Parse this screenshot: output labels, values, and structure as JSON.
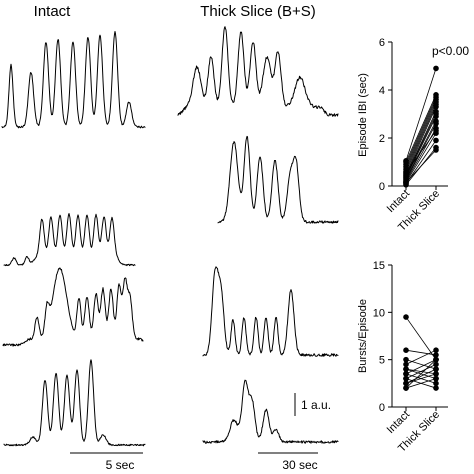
{
  "panel_titles": {
    "intact": "Intact",
    "thick_slice": "Thick Slice (B+S)"
  },
  "scale_bars": {
    "time_intact": "5 sec",
    "time_slice": "30 sec",
    "amplitude": "1 a.u."
  },
  "chart_data": [
    {
      "type": "scatter",
      "paired": true,
      "categories": [
        "Intact",
        "Thick Slice"
      ],
      "ylabel": "Episode IBI (sec)",
      "annotation": "p<0.00",
      "ylim": [
        0,
        6
      ],
      "yticks": [
        0,
        2,
        4,
        6
      ],
      "pairs": [
        [
          0.05,
          1.6
        ],
        [
          0.1,
          1.9
        ],
        [
          0.15,
          2.2
        ],
        [
          0.2,
          2.4
        ],
        [
          0.25,
          2.6
        ],
        [
          0.3,
          2.7
        ],
        [
          0.35,
          2.9
        ],
        [
          0.4,
          3.0
        ],
        [
          0.45,
          3.1
        ],
        [
          0.5,
          3.3
        ],
        [
          0.6,
          3.4
        ],
        [
          0.7,
          3.5
        ],
        [
          0.8,
          3.6
        ],
        [
          0.9,
          3.7
        ],
        [
          1.0,
          3.8
        ],
        [
          1.05,
          4.9
        ],
        [
          0.15,
          1.5
        ],
        [
          0.55,
          2.3
        ]
      ]
    },
    {
      "type": "scatter",
      "paired": true,
      "categories": [
        "Intact",
        "Thick Slice"
      ],
      "ylabel": "Bursts/Episode",
      "ylim": [
        0,
        15
      ],
      "yticks": [
        0,
        5,
        10,
        15
      ],
      "pairs": [
        [
          9.5,
          5.0
        ],
        [
          6.0,
          5.5
        ],
        [
          5.0,
          4.0
        ],
        [
          4.5,
          6.0
        ],
        [
          4.0,
          3.5
        ],
        [
          4.0,
          3.0
        ],
        [
          3.5,
          5.0
        ],
        [
          3.5,
          2.5
        ],
        [
          3.0,
          4.5
        ],
        [
          3.0,
          2.0
        ],
        [
          2.5,
          3.5
        ],
        [
          2.5,
          4.0
        ],
        [
          2.0,
          3.0
        ],
        [
          2.0,
          5.0
        ]
      ]
    }
  ]
}
